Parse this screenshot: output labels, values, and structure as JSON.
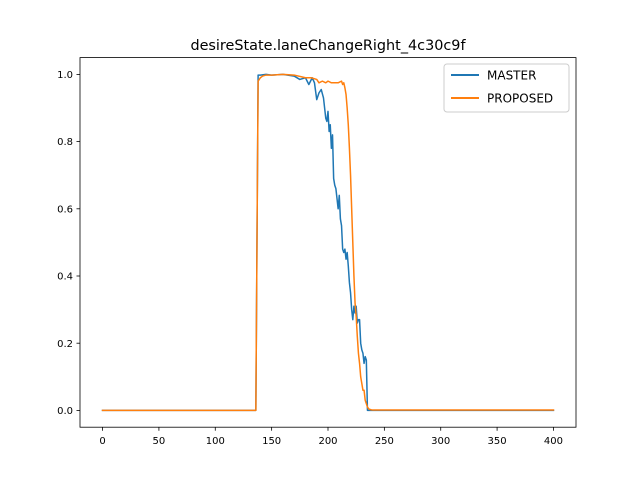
{
  "chart_data": {
    "type": "line",
    "title": "desireState.laneChangeRight_4c30c9f",
    "xlabel": "",
    "ylabel": "",
    "xlim": [
      -20,
      420
    ],
    "ylim": [
      -0.05,
      1.05
    ],
    "x_ticks": [
      0,
      50,
      100,
      150,
      200,
      250,
      300,
      350,
      400
    ],
    "y_ticks": [
      0.0,
      0.2,
      0.4,
      0.6,
      0.8,
      1.0
    ],
    "x_tick_labels": [
      "0",
      "50",
      "100",
      "150",
      "200",
      "250",
      "300",
      "350",
      "400"
    ],
    "y_tick_labels": [
      "0.0",
      "0.2",
      "0.4",
      "0.6",
      "0.8",
      "1.0"
    ],
    "grid": false,
    "legend_position": "upper right",
    "series": [
      {
        "name": "MASTER",
        "color": "#1f77b4",
        "x": [
          0,
          136,
          137,
          138,
          140,
          145,
          150,
          160,
          170,
          175,
          180,
          183,
          186,
          188,
          190,
          192,
          194,
          196,
          198,
          199,
          200,
          201,
          202,
          203,
          204,
          205,
          206,
          207,
          208,
          209,
          210,
          211,
          212,
          213,
          214,
          215,
          216,
          217,
          218,
          219,
          220,
          221,
          222,
          223,
          224,
          225,
          226,
          227,
          228,
          229,
          230,
          231,
          232,
          233,
          234,
          235,
          236,
          237,
          238,
          239,
          240,
          400
        ],
        "y": [
          0.0,
          0.0,
          0.5,
          0.998,
          0.998,
          1.0,
          0.998,
          1.0,
          0.995,
          0.985,
          0.99,
          0.97,
          0.99,
          0.975,
          0.925,
          0.945,
          0.955,
          0.93,
          0.87,
          0.86,
          0.89,
          0.83,
          0.85,
          0.78,
          0.82,
          0.69,
          0.67,
          0.66,
          0.63,
          0.6,
          0.64,
          0.57,
          0.55,
          0.48,
          0.47,
          0.48,
          0.45,
          0.47,
          0.43,
          0.38,
          0.35,
          0.3,
          0.27,
          0.31,
          0.29,
          0.31,
          0.26,
          0.27,
          0.27,
          0.2,
          0.18,
          0.17,
          0.14,
          0.16,
          0.15,
          0.0,
          0.0,
          0.0,
          0.0,
          0.0,
          0.0,
          0.0
        ]
      },
      {
        "name": "PROPOSED",
        "color": "#ff7f0e",
        "x": [
          0,
          136,
          137,
          138,
          139,
          140,
          142,
          145,
          150,
          160,
          170,
          180,
          185,
          190,
          192,
          195,
          198,
          200,
          203,
          206,
          209,
          212,
          213,
          214,
          215,
          216,
          217,
          218,
          219,
          220,
          221,
          222,
          223,
          224,
          225,
          226,
          227,
          228,
          229,
          230,
          231,
          232,
          233,
          234,
          235,
          236,
          237,
          238,
          240,
          400
        ],
        "y": [
          0.0,
          0.0,
          0.5,
          0.98,
          0.985,
          0.99,
          0.995,
          0.998,
          0.998,
          1.0,
          0.998,
          0.99,
          0.99,
          0.985,
          0.975,
          0.98,
          0.975,
          0.98,
          0.975,
          0.975,
          0.975,
          0.98,
          0.97,
          0.975,
          0.96,
          0.94,
          0.9,
          0.85,
          0.78,
          0.7,
          0.6,
          0.5,
          0.4,
          0.32,
          0.28,
          0.22,
          0.17,
          0.14,
          0.1,
          0.08,
          0.06,
          0.06,
          0.03,
          0.02,
          0.01,
          0.005,
          0.003,
          0.002,
          0.001,
          0.001
        ]
      }
    ]
  }
}
